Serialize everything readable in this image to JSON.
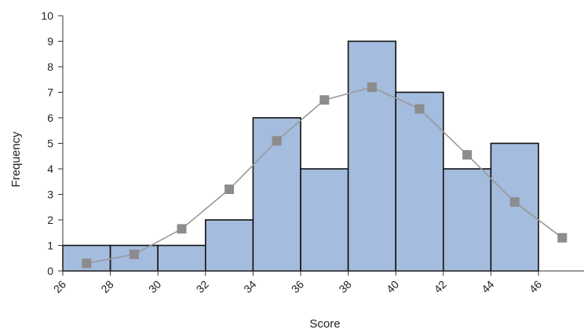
{
  "chart_data": {
    "type": "bar",
    "xlabel": "Score",
    "ylabel": "Frequency",
    "xlim": [
      26,
      46
    ],
    "ylim": [
      0,
      10
    ],
    "x_ticks": [
      "26",
      "28",
      "30",
      "32",
      "34",
      "36",
      "38",
      "40",
      "42",
      "44",
      "46"
    ],
    "y_ticks": [
      "0",
      "1",
      "2",
      "3",
      "4",
      "5",
      "6",
      "7",
      "8",
      "9",
      "10"
    ],
    "bins": [
      {
        "start": 26,
        "end": 28,
        "value": 1
      },
      {
        "start": 28,
        "end": 30,
        "value": 1
      },
      {
        "start": 30,
        "end": 32,
        "value": 1
      },
      {
        "start": 32,
        "end": 34,
        "value": 2
      },
      {
        "start": 34,
        "end": 36,
        "value": 6
      },
      {
        "start": 36,
        "end": 38,
        "value": 4
      },
      {
        "start": 38,
        "end": 40,
        "value": 9
      },
      {
        "start": 40,
        "end": 42,
        "value": 7
      },
      {
        "start": 42,
        "end": 44,
        "value": 4
      },
      {
        "start": 44,
        "end": 46,
        "value": 5
      }
    ],
    "curve": {
      "x": [
        27,
        29,
        31,
        33,
        35,
        37,
        39,
        41,
        43,
        45,
        47
      ],
      "y": [
        0.3,
        0.65,
        1.65,
        3.2,
        5.1,
        6.7,
        7.2,
        6.35,
        4.55,
        2.7,
        1.3
      ]
    },
    "grid": false,
    "colors": {
      "bar_fill": "#a4bcdd",
      "bar_stroke": "#111111",
      "curve": "#999999",
      "marker": "#8c8c8c"
    }
  }
}
